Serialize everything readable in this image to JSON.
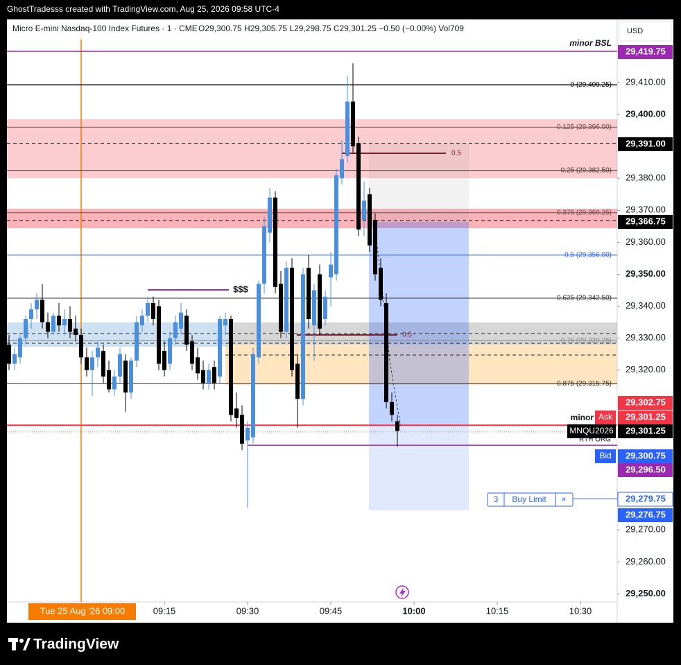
{
  "header": {
    "attribution": "GhostTradesss created with TradingView.com, Aug 25, 2026 09:58 UTC-4",
    "symbol": "Micro E-mini Nasdaq-100 Index Futures · 1 · CME",
    "ohlc": "O29,300.75  H29,305.75  L29,298.75  C29,301.25  −0.50 (−0.00%)  Vol709",
    "currency": "USD",
    "logo": "TradingView"
  },
  "chart_data": {
    "type": "candlestick",
    "x": [
      "08:47",
      "08:48",
      "08:49",
      "08:50",
      "08:51",
      "08:52",
      "08:53",
      "08:54",
      "08:55",
      "08:56",
      "08:57",
      "08:58",
      "08:59",
      "09:00",
      "09:01",
      "09:02",
      "09:03",
      "09:04",
      "09:05",
      "09:06",
      "09:07",
      "09:08",
      "09:09",
      "09:10",
      "09:11",
      "09:12",
      "09:13",
      "09:14",
      "09:15",
      "09:16",
      "09:17",
      "09:18",
      "09:19",
      "09:20",
      "09:21",
      "09:22",
      "09:23",
      "09:24",
      "09:25",
      "09:26",
      "09:27",
      "09:28",
      "09:29",
      "09:30",
      "09:31",
      "09:32",
      "09:33",
      "09:34",
      "09:35",
      "09:36",
      "09:37",
      "09:38",
      "09:39",
      "09:40",
      "09:41",
      "09:42",
      "09:43",
      "09:44",
      "09:45",
      "09:46",
      "09:47",
      "09:48",
      "09:49",
      "09:50",
      "09:51",
      "09:52",
      "09:53",
      "09:54",
      "09:55",
      "09:56",
      "09:57"
    ],
    "open": [
      29328,
      29322,
      29324,
      29330,
      29336,
      29339,
      29342,
      29335,
      29332,
      29337,
      29334,
      29336,
      29333,
      29331,
      29324,
      29320,
      29324,
      29326,
      29320,
      29314,
      29318,
      29323,
      29313,
      29323,
      29334,
      29337,
      29341,
      29340,
      29326,
      29322,
      29330,
      29333,
      29337,
      29329,
      29324,
      29320,
      29316,
      29321,
      29318,
      29334,
      29336,
      29308,
      29306,
      29298,
      29299,
      29324,
      29347,
      29363,
      29374,
      29347,
      29332,
      29352,
      29322,
      29311,
      29352,
      29334,
      29350,
      29336,
      29349,
      29350,
      29380,
      29387,
      29404,
      29391,
      29367,
      29375,
      29367,
      29352,
      29341,
      29310,
      29304
    ],
    "high": [
      29331,
      29327,
      29331,
      29337,
      29341,
      29344,
      29347,
      29338,
      29338,
      29341,
      29339,
      29340,
      29337,
      29333,
      29327,
      29326,
      29329,
      29328,
      29323,
      29320,
      29327,
      29325,
      29324,
      29337,
      29339,
      29343,
      29343,
      29342,
      29329,
      29332,
      29337,
      29341,
      29339,
      29331,
      29327,
      29323,
      29322,
      29323,
      29337,
      29338,
      29337,
      29313,
      29309,
      29304,
      29327,
      29348,
      29368,
      29377,
      29376,
      29351,
      29354,
      29355,
      29325,
      29352,
      29356,
      29347,
      29353,
      29345,
      29357,
      29383,
      29392,
      29412,
      29416,
      29393,
      29379,
      29377,
      29369,
      29355,
      29344,
      29313,
      29306
    ],
    "low": [
      29320,
      29320,
      29322,
      29328,
      29333,
      29336,
      29333,
      29330,
      29331,
      29332,
      29331,
      29330,
      29329,
      29322,
      29318,
      29312,
      29321,
      29316,
      29313,
      29312,
      29316,
      29307,
      29311,
      29321,
      29332,
      29335,
      29334,
      29320,
      29318,
      29320,
      29328,
      29331,
      29326,
      29320,
      29317,
      29314,
      29314,
      29314,
      29316,
      29331,
      29304,
      29302,
      29295,
      29277,
      29297,
      29322,
      29344,
      29360,
      29344,
      29330,
      29330,
      29318,
      29302,
      29309,
      29333,
      29323,
      29331,
      29334,
      29340,
      29348,
      29378,
      29385,
      29388,
      29362,
      29362,
      29357,
      29348,
      29340,
      29308,
      29304,
      29296
    ],
    "close": [
      29322,
      29325,
      29330,
      29336,
      29339,
      29342,
      29335,
      29332,
      29337,
      29334,
      29336,
      29332,
      29331,
      29324,
      29320,
      29324,
      29327,
      29318,
      29314,
      29318,
      29325,
      29313,
      29323,
      29335,
      29337,
      29341,
      29336,
      29322,
      29320,
      29330,
      29335,
      29338,
      29328,
      29322,
      29319,
      29316,
      29320,
      29316,
      29336,
      29336,
      29306,
      29305,
      29297,
      29302,
      29325,
      29347,
      29365,
      29374,
      29346,
      29332,
      29352,
      29320,
      29311,
      29350,
      29336,
      29345,
      29333,
      29343,
      29353,
      29381,
      29386,
      29404,
      29390,
      29364,
      29373,
      29359,
      29350,
      29342,
      29310,
      29306,
      29301
    ],
    "up_color": "#4a8fdc",
    "down_color": "#000000",
    "xlim": [
      "08:46",
      "10:36"
    ],
    "xticks": [
      "09:15",
      "09:30",
      "09:45",
      "10:00",
      "10:15",
      "10:30"
    ],
    "crosshair": {
      "value": "09:00",
      "label": "Tue 25 Aug '26   09:00",
      "color": "#f57c00"
    },
    "ylim": [
      29247.5,
      29429.5
    ],
    "yticks": [
      {
        "value": 29410,
        "label": "29,410.00"
      },
      {
        "value": 29400,
        "label": "29,400.00"
      },
      {
        "value": 29380,
        "label": "29,380.00"
      },
      {
        "value": 29370,
        "label": "29,370.00"
      },
      {
        "value": 29360,
        "label": "29,360.00"
      },
      {
        "value": 29350,
        "label": "29,350.00"
      },
      {
        "value": 29340,
        "label": "29,340.00"
      },
      {
        "value": 29330,
        "label": "29,330.00"
      },
      {
        "value": 29320,
        "label": "29,320.00"
      },
      {
        "value": 29270,
        "label": "29,270.00"
      },
      {
        "value": 29260,
        "label": "29,260.00"
      },
      {
        "value": 29250,
        "label": "29,250.00"
      }
    ],
    "fib_levels": [
      {
        "value": 29409.25,
        "label": "0 (29,409.25)",
        "color": "#000000"
      },
      {
        "value": 29396,
        "label": "0.125 (29,396.00)",
        "color": "#6d4c4c"
      },
      {
        "value": 29382.5,
        "label": "0.25 (29,382.50)",
        "color": "#4a3a3a"
      },
      {
        "value": 29369.25,
        "label": "0.375 (29,369.25)",
        "color": "#6d4c4c"
      },
      {
        "value": 29356,
        "label": "0.5 (29,356.00)",
        "color": "#2962ff"
      },
      {
        "value": 29342.5,
        "label": "0.625 (29,342.50)",
        "color": "#333333"
      },
      {
        "value": 29329.25,
        "label": "0.75 (29,329.25)",
        "color": "#888888"
      },
      {
        "value": 29315.75,
        "label": "0.875 (29,315.75)",
        "color": "#333333"
      }
    ],
    "price_labels": [
      {
        "value": 29419.75,
        "label": "29,419.75",
        "color": "#9c27b0",
        "tag": "minor BSL"
      },
      {
        "value": 29391,
        "label": "29,391.00",
        "color": "#000000"
      },
      {
        "value": 29366.75,
        "label": "29,366.75",
        "color": "#000000"
      },
      {
        "value": 29302.75,
        "label": "29,302.75",
        "color": "#f23645"
      },
      {
        "value": 29301.25,
        "label": "29,301.25",
        "color": "#f23645",
        "tag": "Ask"
      },
      {
        "value": 29301.25,
        "label": "29,301.25",
        "color": "#000000",
        "tag": "MNQU2026"
      },
      {
        "value": 29300.75,
        "label": "29,300.75",
        "color": "#2962ff",
        "tag": "Bid"
      },
      {
        "value": 29296.5,
        "label": "29,296.50",
        "color": "#9c27b0"
      },
      {
        "value": 29279.75,
        "label": "29,279.75",
        "color": "#ffffff"
      },
      {
        "value": 29276.75,
        "label": "29,276.75",
        "color": "#2962ff"
      }
    ],
    "annotations": {
      "dollars": "$$$",
      "half_a": "0.5",
      "half_b": "0.5",
      "minor": "minor",
      "rth": "RTH ORG",
      "countdown": "00:50"
    },
    "order": {
      "qty": 3,
      "label": "Buy Limit",
      "close": "×"
    }
  }
}
